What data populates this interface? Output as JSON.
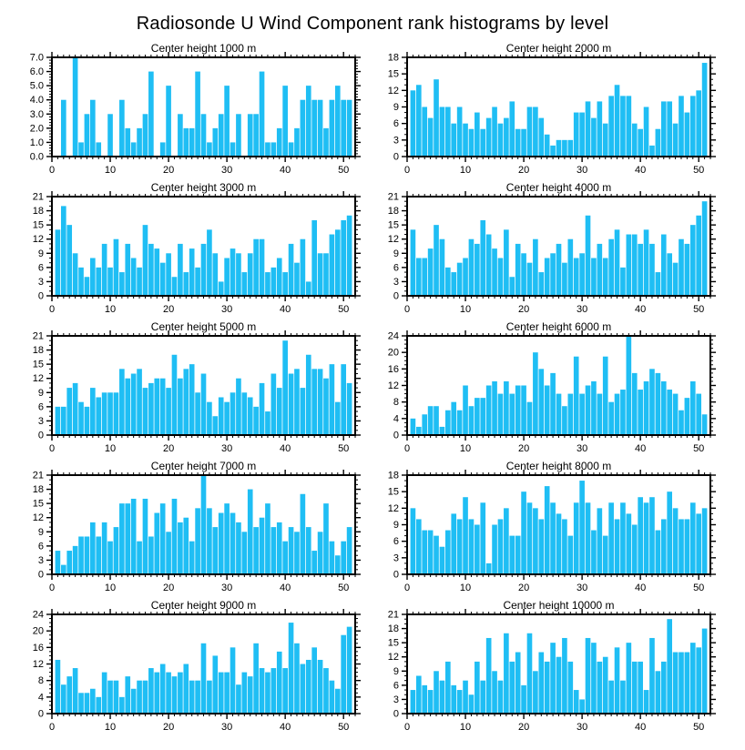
{
  "page_title": "Radiosonde U Wind Component rank histograms by level",
  "style": {
    "bar_color": "#1fbef4",
    "axis_color": "#000000",
    "background_color": "#ffffff"
  },
  "x_axis": {
    "range": [
      0,
      52
    ],
    "major_ticks": [
      0,
      10,
      20,
      30,
      40,
      50
    ],
    "minor_step": 1,
    "bins": "rank 1-51, one bar per rank"
  },
  "chart_data": [
    {
      "type": "bar",
      "title": "Center height 1000 m",
      "ylim": [
        0,
        7
      ],
      "ytick_step": 1,
      "ydecimals": 1,
      "minors_per_major": 4,
      "values": [
        0,
        4,
        0,
        7,
        1,
        3,
        4,
        1,
        0,
        3,
        0,
        4,
        2,
        1,
        2,
        3,
        6,
        0,
        1,
        5,
        0,
        3,
        2,
        2,
        6,
        3,
        1,
        2,
        3,
        5,
        1,
        3,
        0,
        3,
        3,
        6,
        1,
        1,
        2,
        5,
        1,
        2,
        4,
        5,
        4,
        4,
        2,
        4,
        5,
        4,
        4
      ]
    },
    {
      "type": "bar",
      "title": "Center height 2000 m",
      "ylim": [
        0,
        18
      ],
      "ytick_step": 3,
      "ydecimals": 0,
      "minors_per_major": 2,
      "values": [
        12,
        13,
        9,
        7,
        14,
        9,
        9,
        6,
        9,
        6,
        5,
        8,
        5,
        7,
        9,
        6,
        7,
        10,
        5,
        5,
        9,
        9,
        7,
        4,
        2,
        3,
        3,
        3,
        8,
        8,
        10,
        7,
        10,
        6,
        11,
        13,
        11,
        11,
        6,
        5,
        9,
        2,
        5,
        10,
        10,
        6,
        11,
        8,
        11,
        12,
        17
      ]
    },
    {
      "type": "bar",
      "title": "Center height 3000 m",
      "ylim": [
        0,
        21
      ],
      "ytick_step": 3,
      "ydecimals": 0,
      "minors_per_major": 2,
      "values": [
        14,
        19,
        15,
        9,
        6,
        4,
        8,
        6,
        11,
        6,
        12,
        5,
        11,
        8,
        6,
        15,
        11,
        10,
        7,
        9,
        4,
        11,
        5,
        10,
        6,
        11,
        14,
        9,
        3,
        8,
        10,
        9,
        5,
        9,
        12,
        12,
        5,
        6,
        8,
        5,
        11,
        7,
        12,
        3,
        16,
        9,
        9,
        13,
        14,
        16,
        17
      ]
    },
    {
      "type": "bar",
      "title": "Center height 4000 m",
      "ylim": [
        0,
        21
      ],
      "ytick_step": 3,
      "ydecimals": 0,
      "minors_per_major": 2,
      "values": [
        14,
        8,
        8,
        10,
        15,
        12,
        6,
        5,
        7,
        8,
        12,
        11,
        16,
        13,
        10,
        8,
        14,
        4,
        11,
        9,
        7,
        12,
        5,
        8,
        9,
        11,
        7,
        12,
        8,
        9,
        17,
        8,
        11,
        8,
        12,
        14,
        6,
        13,
        13,
        11,
        14,
        11,
        5,
        13,
        9,
        7,
        12,
        11,
        15,
        17,
        20
      ]
    },
    {
      "type": "bar",
      "title": "Center height 5000 m",
      "ylim": [
        0,
        21
      ],
      "ytick_step": 3,
      "ydecimals": 0,
      "minors_per_major": 2,
      "values": [
        6,
        6,
        10,
        11,
        7,
        6,
        10,
        8,
        9,
        9,
        9,
        14,
        12,
        13,
        14,
        10,
        11,
        12,
        12,
        10,
        17,
        12,
        14,
        15,
        9,
        13,
        7,
        4,
        8,
        7,
        9,
        12,
        9,
        8,
        6,
        11,
        5,
        13,
        10,
        20,
        13,
        14,
        10,
        17,
        14,
        14,
        12,
        15,
        7,
        15,
        11
      ]
    },
    {
      "type": "bar",
      "title": "Center height 6000 m",
      "ylim": [
        0,
        24
      ],
      "ytick_step": 4,
      "ydecimals": 0,
      "minors_per_major": 3,
      "values": [
        4,
        2,
        5,
        7,
        7,
        2,
        6,
        8,
        6,
        12,
        7,
        9,
        9,
        12,
        13,
        10,
        13,
        10,
        12,
        12,
        8,
        20,
        16,
        12,
        15,
        10,
        7,
        10,
        19,
        10,
        12,
        13,
        10,
        19,
        8,
        10,
        11,
        24,
        15,
        11,
        13,
        16,
        15,
        13,
        11,
        10,
        6,
        9,
        13,
        10,
        5
      ]
    },
    {
      "type": "bar",
      "title": "Center height 7000 m",
      "ylim": [
        0,
        21
      ],
      "ytick_step": 3,
      "ydecimals": 0,
      "minors_per_major": 2,
      "values": [
        5,
        2,
        5,
        6,
        8,
        8,
        11,
        8,
        11,
        7,
        10,
        15,
        15,
        16,
        7,
        16,
        8,
        13,
        15,
        9,
        16,
        11,
        12,
        7,
        14,
        21,
        14,
        10,
        13,
        15,
        13,
        11,
        9,
        18,
        10,
        12,
        15,
        10,
        11,
        7,
        10,
        9,
        17,
        10,
        5,
        9,
        15,
        7,
        4,
        7,
        10
      ]
    },
    {
      "type": "bar",
      "title": "Center height 8000 m",
      "ylim": [
        0,
        18
      ],
      "ytick_step": 3,
      "ydecimals": 0,
      "minors_per_major": 2,
      "values": [
        12,
        10,
        8,
        8,
        7,
        5,
        8,
        11,
        10,
        14,
        10,
        9,
        13,
        2,
        9,
        10,
        12,
        7,
        7,
        15,
        13,
        12,
        10,
        16,
        13,
        11,
        10,
        7,
        13,
        17,
        13,
        8,
        12,
        7,
        13,
        10,
        13,
        11,
        9,
        14,
        13,
        14,
        8,
        10,
        15,
        12,
        10,
        10,
        13,
        11,
        12
      ]
    },
    {
      "type": "bar",
      "title": "Center height 9000 m",
      "ylim": [
        0,
        24
      ],
      "ytick_step": 4,
      "ydecimals": 0,
      "minors_per_major": 3,
      "values": [
        13,
        7,
        9,
        11,
        5,
        5,
        6,
        4,
        10,
        8,
        8,
        4,
        9,
        6,
        8,
        8,
        11,
        10,
        12,
        10,
        9,
        10,
        12,
        8,
        8,
        17,
        8,
        14,
        10,
        10,
        16,
        7,
        10,
        9,
        17,
        11,
        10,
        11,
        15,
        11,
        22,
        17,
        12,
        13,
        16,
        13,
        11,
        8,
        6,
        19,
        21
      ]
    },
    {
      "type": "bar",
      "title": "Center height 10000 m",
      "ylim": [
        0,
        21
      ],
      "ytick_step": 3,
      "ydecimals": 0,
      "minors_per_major": 2,
      "values": [
        5,
        8,
        6,
        5,
        9,
        7,
        11,
        6,
        5,
        7,
        4,
        11,
        7,
        16,
        9,
        7,
        17,
        11,
        13,
        6,
        17,
        9,
        13,
        11,
        15,
        12,
        16,
        11,
        5,
        3,
        16,
        15,
        11,
        12,
        7,
        14,
        7,
        15,
        11,
        11,
        5,
        16,
        9,
        11,
        20,
        13,
        13,
        13,
        15,
        14,
        18
      ]
    }
  ]
}
